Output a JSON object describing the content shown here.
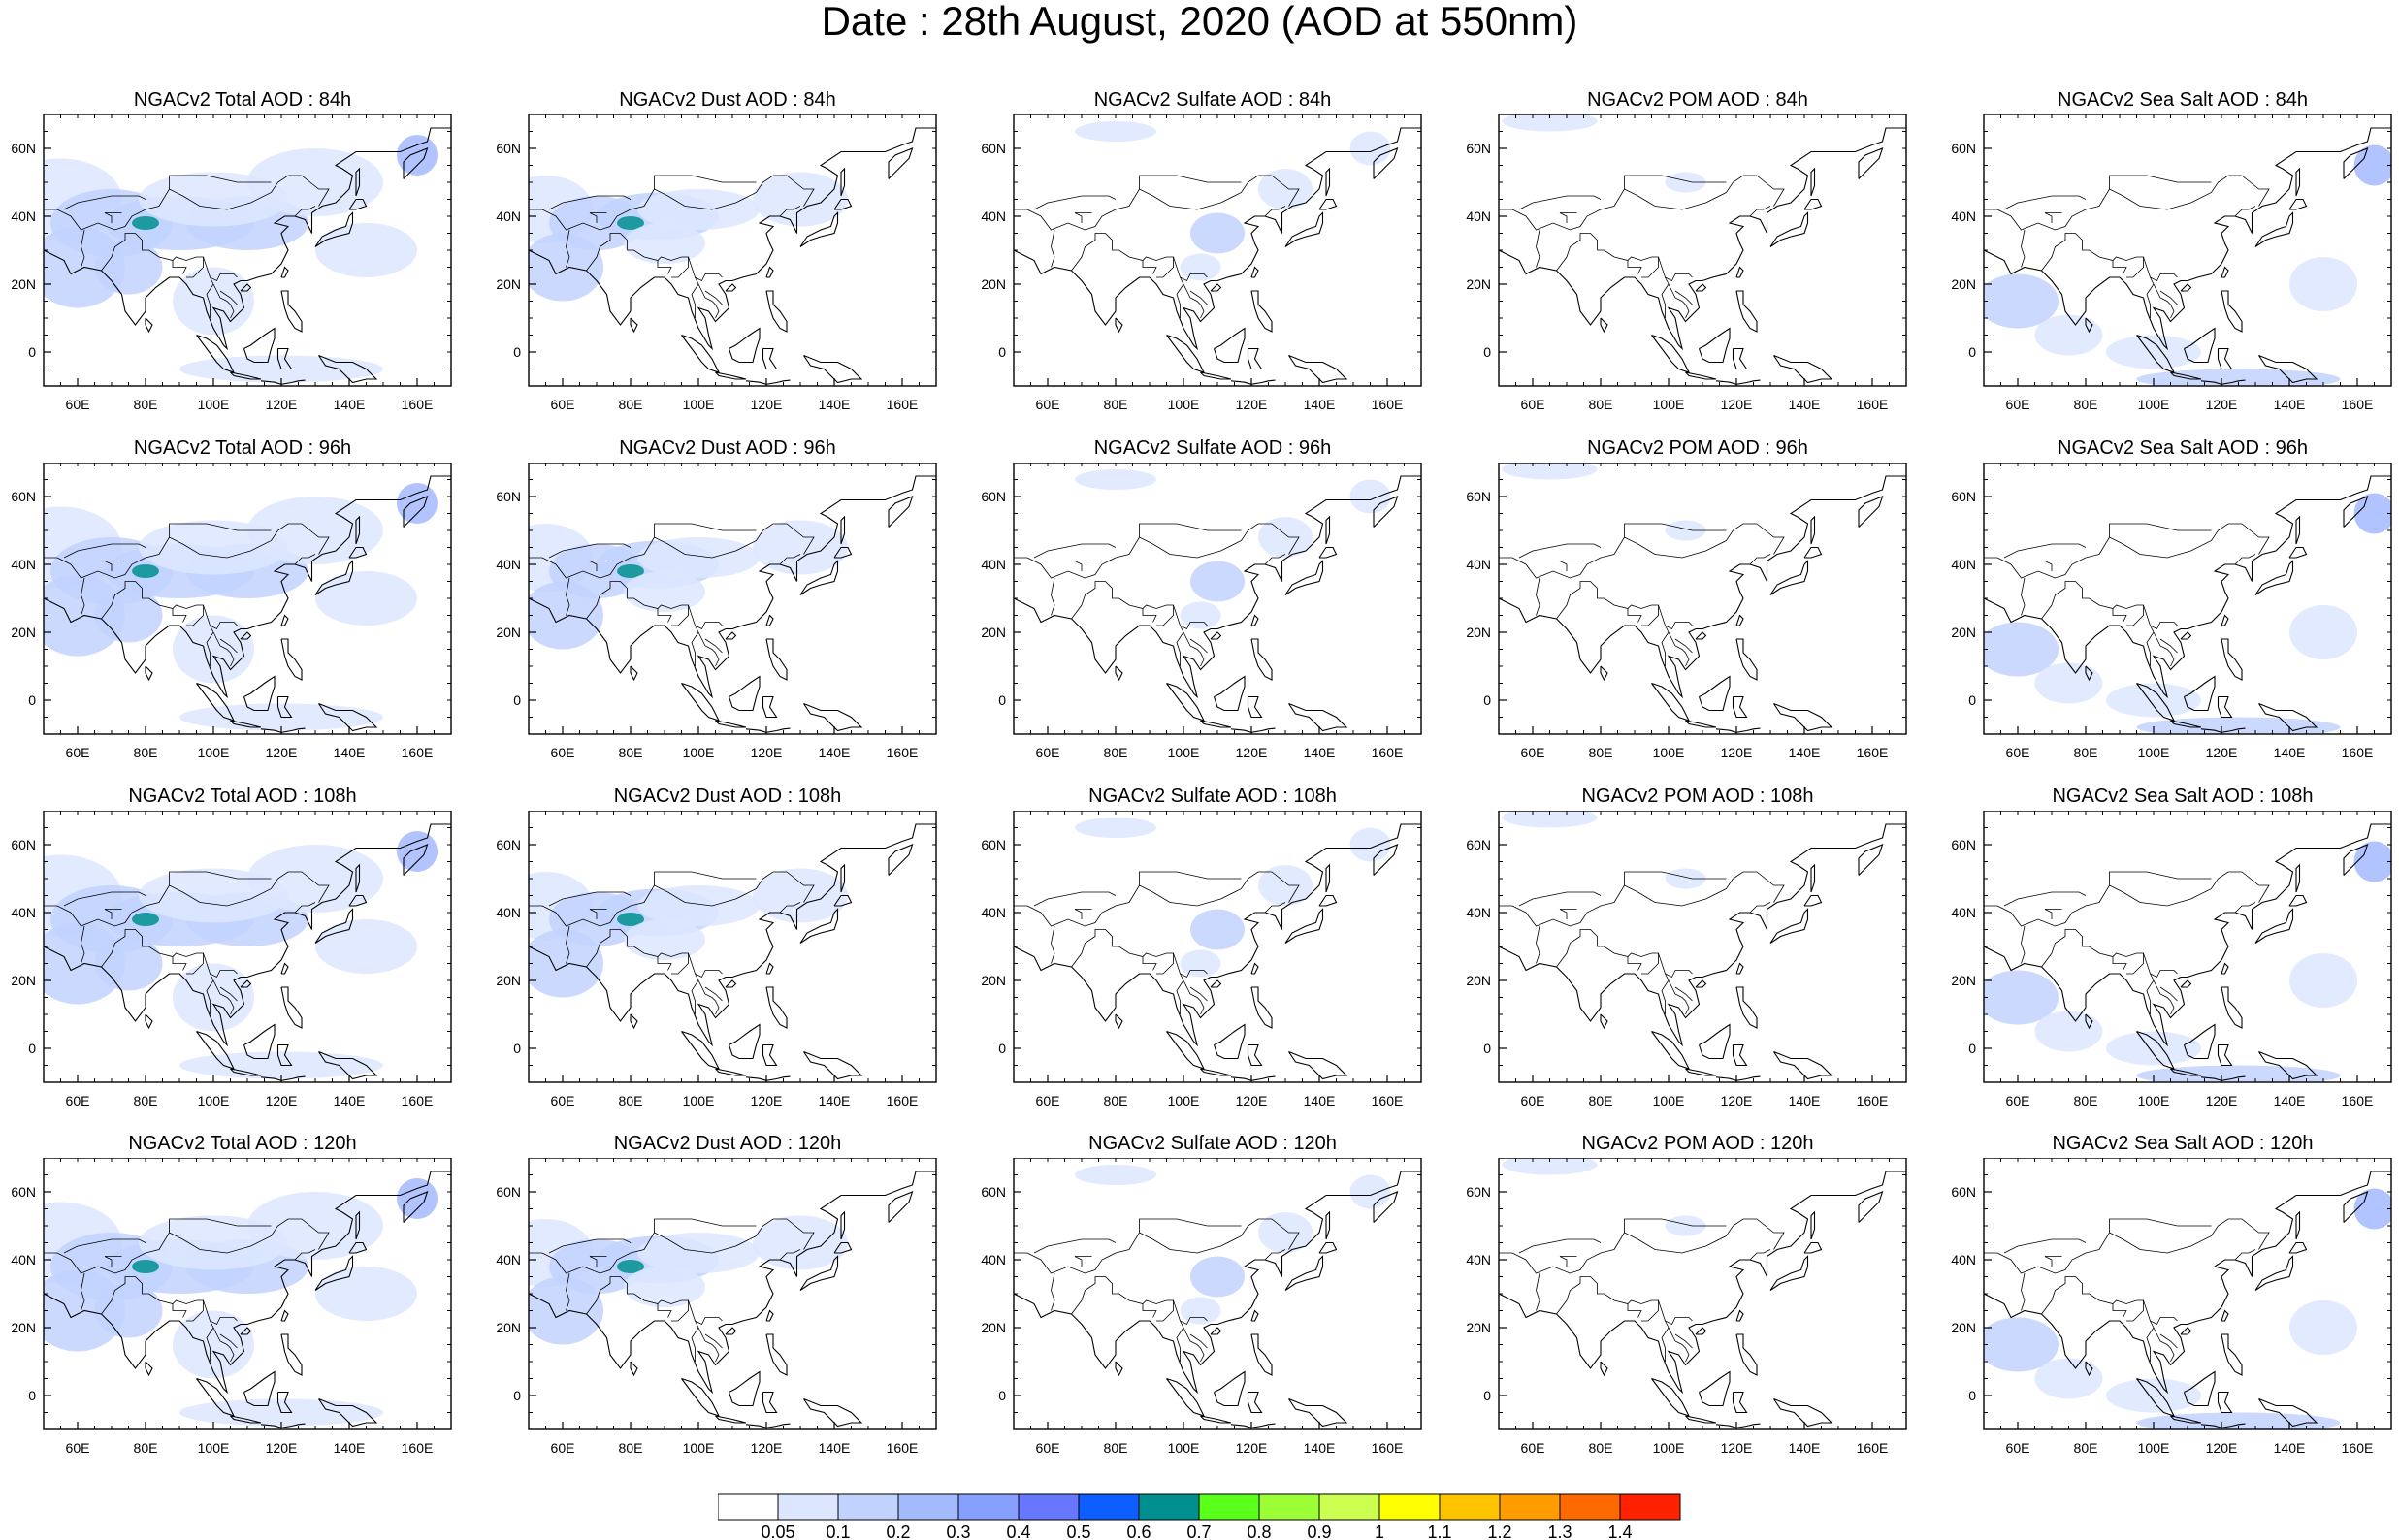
{
  "title": "Date : 28th August, 2020 (AOD at 550nm)",
  "axes": {
    "lon_ticks": [
      "60E",
      "80E",
      "100E",
      "120E",
      "140E",
      "160E"
    ],
    "lat_ticks": [
      "60N",
      "40N",
      "20N",
      "0"
    ]
  },
  "panels": [
    {
      "title": "NGACv2 Total AOD : 84h",
      "species": "total"
    },
    {
      "title": "NGACv2 Dust AOD : 84h",
      "species": "dust"
    },
    {
      "title": "NGACv2 Sulfate AOD : 84h",
      "species": "sulfate"
    },
    {
      "title": "NGACv2 POM AOD : 84h",
      "species": "pom"
    },
    {
      "title": "NGACv2 Sea Salt AOD : 84h",
      "species": "seasalt"
    },
    {
      "title": "NGACv2 Total AOD : 96h",
      "species": "total"
    },
    {
      "title": "NGACv2 Dust AOD : 96h",
      "species": "dust"
    },
    {
      "title": "NGACv2 Sulfate AOD : 96h",
      "species": "sulfate"
    },
    {
      "title": "NGACv2 POM AOD : 96h",
      "species": "pom"
    },
    {
      "title": "NGACv2 Sea Salt AOD : 96h",
      "species": "seasalt"
    },
    {
      "title": "NGACv2 Total AOD : 108h",
      "species": "total"
    },
    {
      "title": "NGACv2 Dust AOD : 108h",
      "species": "dust"
    },
    {
      "title": "NGACv2 Sulfate AOD : 108h",
      "species": "sulfate"
    },
    {
      "title": "NGACv2 POM AOD : 108h",
      "species": "pom"
    },
    {
      "title": "NGACv2 Sea Salt AOD : 108h",
      "species": "seasalt"
    },
    {
      "title": "NGACv2 Total AOD : 120h",
      "species": "total"
    },
    {
      "title": "NGACv2 Dust AOD : 120h",
      "species": "dust"
    },
    {
      "title": "NGACv2 Sulfate AOD : 120h",
      "species": "sulfate"
    },
    {
      "title": "NGACv2 POM AOD : 120h",
      "species": "pom"
    },
    {
      "title": "NGACv2 Sea Salt  AOD : 120h",
      "species": "seasalt"
    }
  ],
  "colorbar": {
    "labels": [
      "0.05",
      "0.1",
      "0.2",
      "0.3",
      "0.4",
      "0.5",
      "0.6",
      "0.7",
      "0.8",
      "0.9",
      "1",
      "1.1",
      "1.2",
      "1.3",
      "1.4"
    ],
    "colors": [
      "#ffffff",
      "#dde6ff",
      "#c2d2ff",
      "#a4baff",
      "#86a0ff",
      "#6778ff",
      "#0e5eff",
      "#008f8f",
      "#5aff1a",
      "#9cff36",
      "#ccff50",
      "#ffff00",
      "#ffc400",
      "#ff9c00",
      "#ff6a00",
      "#ff2200"
    ]
  }
}
